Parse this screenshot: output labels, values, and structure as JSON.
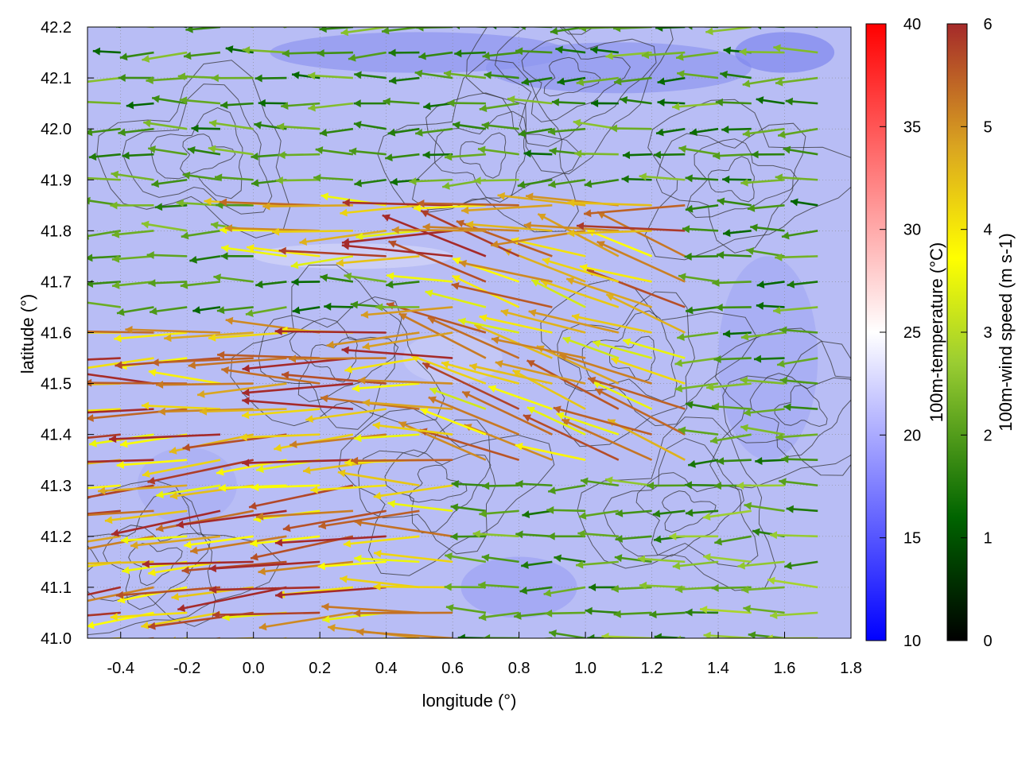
{
  "chart_data": {
    "type": "vector-field",
    "xlabel": "longitude (°)",
    "ylabel": "latitude (°)",
    "xlim": [
      -0.5,
      1.8
    ],
    "ylim": [
      41.0,
      42.2
    ],
    "xticks": [
      "-0.4",
      "-0.2",
      "0.0",
      "0.2",
      "0.4",
      "0.6",
      "0.8",
      "1.0",
      "1.2",
      "1.4",
      "1.6",
      "1.8"
    ],
    "yticks": [
      "41.0",
      "41.1",
      "41.2",
      "41.3",
      "41.4",
      "41.5",
      "41.6",
      "41.7",
      "41.8",
      "41.9",
      "42.0",
      "42.1",
      "42.2"
    ],
    "grid": true,
    "background_field": {
      "name": "100m-temperature (°C)",
      "label": "100m-temperature (°C)",
      "range": [
        10,
        40
      ],
      "ticks": [
        "10",
        "15",
        "20",
        "25",
        "30",
        "35",
        "40"
      ],
      "colormap": [
        "#0000ff",
        "#ffffff",
        "#ff0000"
      ]
    },
    "vector_field": {
      "name": "100m-wind speed",
      "label": "100m-wind speed (m s-1)",
      "range": [
        0,
        6
      ],
      "ticks": [
        "0",
        "1",
        "2",
        "3",
        "4",
        "5",
        "6"
      ],
      "colormap": [
        "#000000",
        "#006400",
        "#9acd32",
        "#ffff00",
        "#daa520",
        "#a52a2a"
      ],
      "prevailing_direction": "east-to-west",
      "regions": [
        {
          "lon": [
            -0.5,
            0.6
          ],
          "lat": [
            41.0,
            41.6
          ],
          "speed": 6.0
        },
        {
          "lon": [
            0.0,
            1.3
          ],
          "lat": [
            41.7,
            41.85
          ],
          "speed": 5.8
        },
        {
          "lon": [
            0.6,
            1.4
          ],
          "lat": [
            41.3,
            41.8
          ],
          "speed": 5.5
        },
        {
          "lon": [
            1.2,
            1.8
          ],
          "lat": [
            41.0,
            41.3
          ],
          "speed": 2.5
        },
        {
          "lon": [
            0.3,
            1.3
          ],
          "lat": [
            41.9,
            42.2
          ],
          "speed": 1.5
        },
        {
          "lon": [
            1.4,
            1.8
          ],
          "lat": [
            41.3,
            41.8
          ],
          "speed": 1.2
        }
      ]
    },
    "contours": "topography"
  }
}
